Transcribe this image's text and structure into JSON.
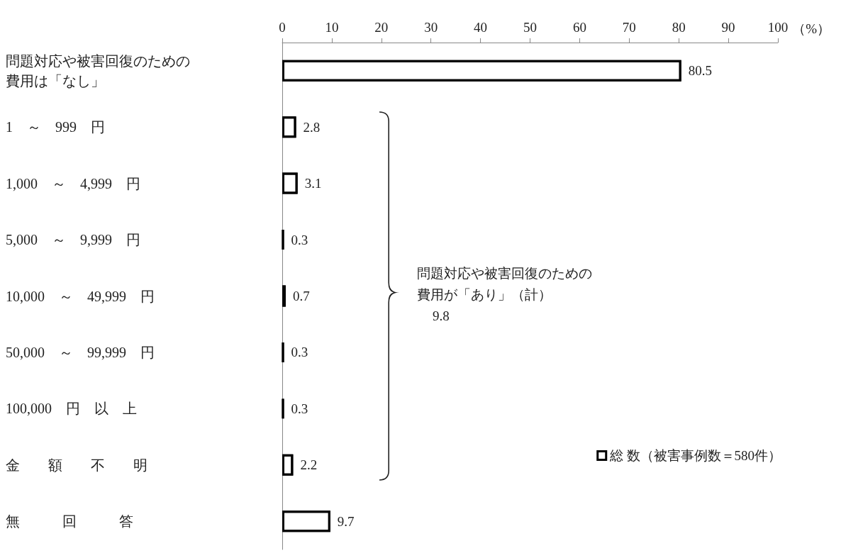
{
  "chart_data": {
    "type": "bar",
    "orientation": "horizontal",
    "categories": [
      "問題対応や被害回復のための費用は「なし」",
      "1　～　999　円",
      "1,000　～　4,999　円",
      "5,000　～　9,999　円",
      "10,000　～　49,999　円",
      "50,000　～　99,999　円",
      "100,000　円　以　上",
      "金　　額　　不　　明",
      "無　　　回　　　答"
    ],
    "series": [
      {
        "name": "総 数（被害事例数＝580件）",
        "color": "#ffffff",
        "colors": [
          "#ffffff",
          "#ffffff",
          "#ffffff",
          "#000000",
          "#000000",
          "#000000",
          "#000000",
          "#ffffff",
          "#ffffff"
        ],
        "values": [
          80.5,
          2.8,
          3.1,
          0.3,
          0.7,
          0.3,
          0.3,
          2.2,
          9.7
        ]
      }
    ],
    "xlabel": "（%）",
    "xlim": [
      0,
      100
    ],
    "xticks": [
      0,
      10,
      20,
      30,
      40,
      50,
      60,
      70,
      80,
      90,
      100
    ],
    "annotations": [
      "問題対応や被害回復のための費用が「あり」（計）",
      "9.8"
    ],
    "data_labels": true,
    "grid": false,
    "legend": "bottom right"
  }
}
